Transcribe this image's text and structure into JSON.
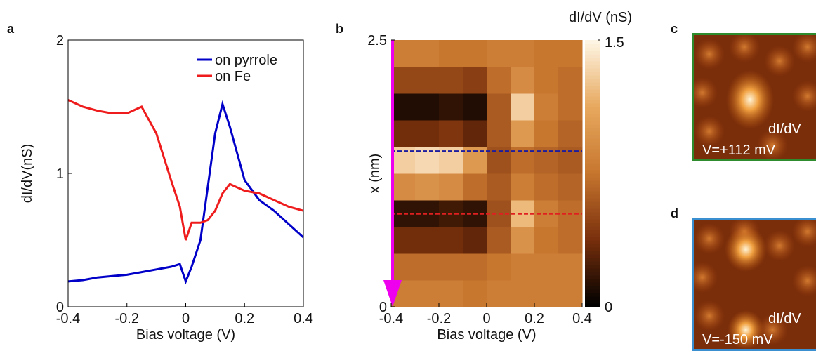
{
  "chart_data": [
    {
      "type": "line",
      "panel": "a",
      "xlabel": "Bias voltage (V)",
      "ylabel": "dI/dV(nS)",
      "x": [
        -0.4,
        -0.35,
        -0.3,
        -0.25,
        -0.2,
        -0.15,
        -0.1,
        -0.05,
        -0.02,
        0,
        0.02,
        0.05,
        0.075,
        0.1,
        0.125,
        0.15,
        0.2,
        0.25,
        0.3,
        0.35,
        0.4
      ],
      "series": [
        {
          "name": "on pyrrole",
          "color": "#0000c8",
          "values": [
            0.19,
            0.2,
            0.22,
            0.23,
            0.24,
            0.26,
            0.28,
            0.3,
            0.32,
            0.19,
            0.3,
            0.5,
            0.9,
            1.3,
            1.52,
            1.35,
            0.95,
            0.8,
            0.72,
            0.62,
            0.52
          ]
        },
        {
          "name": "on Fe",
          "color": "#ee1c1c",
          "values": [
            1.55,
            1.5,
            1.47,
            1.45,
            1.45,
            1.5,
            1.3,
            0.95,
            0.75,
            0.5,
            0.63,
            0.63,
            0.65,
            0.72,
            0.85,
            0.92,
            0.87,
            0.85,
            0.8,
            0.75,
            0.72
          ]
        }
      ],
      "xlim": [
        -0.4,
        0.4
      ],
      "xticks": [
        -0.4,
        -0.2,
        0,
        0.2,
        0.4
      ],
      "ylim": [
        0,
        2
      ],
      "yticks": [
        0,
        1,
        2
      ],
      "legend": "upper right"
    },
    {
      "type": "heatmap",
      "panel": "b",
      "xlabel": "Bias voltage (V)",
      "ylabel": "x (nm)",
      "xbins": [
        -0.4,
        -0.3,
        -0.2,
        -0.1,
        0,
        0.1,
        0.2,
        0.3,
        0.4
      ],
      "ybins": [
        0,
        0.25,
        0.5,
        0.75,
        1,
        1.25,
        1.5,
        1.75,
        2,
        2.25,
        2.5
      ],
      "z": [
        [
          0.8,
          0.8,
          0.8,
          0.75,
          0.8,
          0.8,
          0.8,
          0.8
        ],
        [
          0.7,
          0.7,
          0.7,
          0.7,
          0.75,
          0.8,
          0.8,
          0.8
        ],
        [
          0.35,
          0.35,
          0.35,
          0.3,
          0.6,
          0.95,
          0.75,
          0.7
        ],
        [
          0.15,
          0.15,
          0.2,
          0.15,
          0.55,
          1.2,
          0.8,
          0.7
        ],
        [
          0.9,
          0.95,
          0.9,
          0.7,
          0.6,
          0.8,
          0.7,
          0.65
        ],
        [
          1.3,
          1.35,
          1.3,
          1.0,
          0.55,
          0.7,
          0.65,
          0.6
        ],
        [
          0.35,
          0.35,
          0.4,
          0.3,
          0.6,
          1.0,
          0.75,
          0.65
        ],
        [
          0.1,
          0.1,
          0.15,
          0.1,
          0.6,
          1.3,
          0.8,
          0.7
        ],
        [
          0.5,
          0.5,
          0.5,
          0.45,
          0.7,
          0.9,
          0.75,
          0.7
        ],
        [
          0.8,
          0.8,
          0.75,
          0.75,
          0.8,
          0.8,
          0.75,
          0.75
        ]
      ],
      "colormap": [
        "#000000",
        "#7a300c",
        "#c8772f",
        "#e8aa60",
        "#fff8ea"
      ],
      "hlines": [
        {
          "y": 1.46,
          "color": "#1c1ca0"
        },
        {
          "y": 0.87,
          "color": "#e02020"
        }
      ],
      "xlim": [
        -0.4,
        0.4
      ],
      "xticks": [
        -0.4,
        -0.2,
        0,
        0.2,
        0.4
      ],
      "ylim": [
        0,
        2.5
      ],
      "yticks": [
        0,
        2.5
      ],
      "colorbar": {
        "label": "dI/dV (nS)",
        "lim": [
          0,
          1.5
        ],
        "ticks": [
          0,
          1.5
        ]
      }
    }
  ],
  "images": [
    {
      "panel": "c",
      "label": "dI/dV",
      "voltage": "V=+112 mV",
      "border": "#2e8b2e"
    },
    {
      "panel": "d",
      "label": "dI/dV",
      "voltage": "V=-150 mV",
      "border": "#3a8fd0"
    }
  ]
}
